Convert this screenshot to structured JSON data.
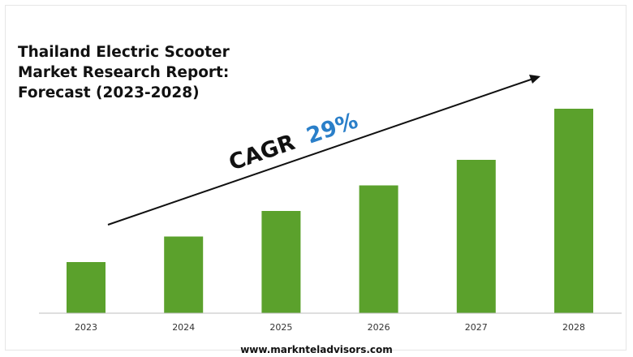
{
  "title_lines": [
    "Thailand Electric Scooter",
    "Market Research Report:",
    "Forecast (2023-2028)"
  ],
  "cagr": {
    "label": "CAGR",
    "value": "29%"
  },
  "footer": "www.marknteladvisors.com",
  "colors": {
    "bar": "#5ba12c",
    "cagr_value": "#2a7fc9",
    "text": "#111111"
  },
  "chart_data": {
    "type": "bar",
    "title": "Thailand Electric Scooter Market Research Report: Forecast (2023-2028)",
    "xlabel": "",
    "ylabel": "",
    "categories": [
      "2023",
      "2024",
      "2025",
      "2026",
      "2027",
      "2028"
    ],
    "values": [
      20,
      30,
      40,
      50,
      60,
      80
    ],
    "annotations": [
      "CAGR 29%"
    ],
    "grid": false,
    "legend": "none"
  }
}
